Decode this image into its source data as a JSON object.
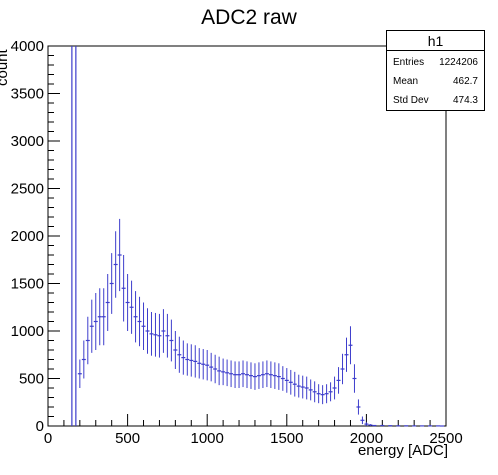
{
  "chart_data": {
    "type": "histogram",
    "title": "ADC2 raw",
    "xlabel": "energy [ADC]",
    "ylabel": "count",
    "xlim": [
      0,
      2500
    ],
    "ylim": [
      0,
      4000
    ],
    "xticks": [
      0,
      500,
      1000,
      1500,
      2000,
      2500
    ],
    "yticks": [
      0,
      500,
      1000,
      1500,
      2000,
      2500,
      3000,
      3500,
      4000
    ],
    "series": [
      {
        "color": "#3d3dcc",
        "x": [
          150,
          175,
          200,
          225,
          250,
          275,
          300,
          325,
          350,
          375,
          400,
          425,
          450,
          475,
          500,
          525,
          550,
          575,
          600,
          625,
          650,
          675,
          700,
          725,
          750,
          775,
          800,
          825,
          850,
          875,
          900,
          925,
          950,
          975,
          1000,
          1025,
          1050,
          1075,
          1100,
          1125,
          1150,
          1175,
          1200,
          1225,
          1250,
          1275,
          1300,
          1325,
          1350,
          1375,
          1400,
          1425,
          1450,
          1475,
          1500,
          1525,
          1550,
          1575,
          1600,
          1625,
          1650,
          1675,
          1700,
          1725,
          1750,
          1775,
          1800,
          1825,
          1850,
          1875,
          1900,
          1925,
          1950,
          1975,
          2000,
          2025,
          2050,
          2100,
          2150,
          2200,
          2250,
          2300,
          2350,
          2400,
          2450,
          2475
        ],
        "y": [
          4000,
          4000,
          550,
          700,
          900,
          1050,
          1100,
          1150,
          1150,
          1300,
          1500,
          1700,
          1800,
          1450,
          1300,
          1250,
          1150,
          1100,
          1050,
          1000,
          970,
          960,
          950,
          1000,
          950,
          900,
          800,
          750,
          720,
          700,
          690,
          680,
          660,
          650,
          640,
          620,
          600,
          580,
          570,
          560,
          550,
          540,
          540,
          550,
          540,
          530,
          520,
          530,
          540,
          550,
          540,
          530,
          520,
          500,
          480,
          460,
          440,
          420,
          410,
          400,
          380,
          360,
          340,
          330,
          340,
          360,
          400,
          480,
          600,
          750,
          850,
          500,
          200,
          60,
          20,
          10,
          5,
          5,
          3,
          2,
          2,
          1,
          1,
          1,
          1,
          0
        ],
        "spread": [
          0,
          0,
          150,
          200,
          250,
          280,
          300,
          300,
          300,
          300,
          320,
          350,
          380,
          350,
          300,
          280,
          270,
          260,
          250,
          240,
          230,
          230,
          230,
          230,
          230,
          220,
          200,
          190,
          180,
          170,
          170,
          170,
          160,
          160,
          160,
          150,
          150,
          150,
          140,
          140,
          140,
          140,
          140,
          140,
          140,
          140,
          140,
          140,
          140,
          140,
          140,
          140,
          140,
          130,
          130,
          130,
          130,
          120,
          120,
          120,
          110,
          110,
          100,
          100,
          100,
          100,
          120,
          140,
          160,
          180,
          200,
          150,
          80,
          40,
          20,
          10,
          5,
          5,
          3,
          2,
          2,
          1,
          1,
          1,
          1,
          0
        ]
      }
    ]
  },
  "stats": {
    "name": "h1",
    "rows": [
      {
        "key": "Entries",
        "value": "1224206"
      },
      {
        "key": "Mean",
        "value": "462.7"
      },
      {
        "key": "Std Dev",
        "value": "474.3"
      }
    ]
  }
}
